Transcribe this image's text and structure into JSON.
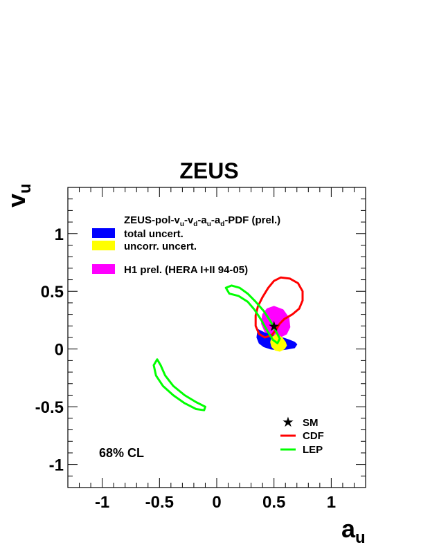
{
  "chart_data": {
    "type": "contour",
    "title": "ZEUS",
    "xlabel": {
      "main": "a",
      "sub": "u"
    },
    "ylabel": {
      "main": "v",
      "sub": "u"
    },
    "xlim": [
      -1.3,
      1.3
    ],
    "ylim": [
      -1.2,
      1.4
    ],
    "xticks": [
      {
        "value": -1,
        "label": "-1"
      },
      {
        "value": -0.5,
        "label": "-0.5"
      },
      {
        "value": 0,
        "label": "0"
      },
      {
        "value": 0.5,
        "label": "0.5"
      },
      {
        "value": 1,
        "label": "1"
      }
    ],
    "yticks": [
      {
        "value": -1,
        "label": "-1"
      },
      {
        "value": -0.5,
        "label": "-0.5"
      },
      {
        "value": 0,
        "label": "0"
      },
      {
        "value": 0.5,
        "label": "0.5"
      },
      {
        "value": 1,
        "label": "1"
      }
    ],
    "legend_top": {
      "heading": {
        "p1": "ZEUS-pol-v",
        "s1": "u",
        "p2": "-v",
        "s2": "d",
        "p3": "-a",
        "s3": "u",
        "p4": "-a",
        "s4": "d",
        "p5": "-PDF (prel.)"
      },
      "entries": [
        {
          "label": "total uncert.",
          "color": "#0000ff"
        },
        {
          "label": "uncorr. uncert.",
          "color": "#ffff00"
        },
        {
          "label": "H1 prel. (HERA I+II 94-05)",
          "color": "#ff00ff"
        }
      ]
    },
    "legend_bottom": [
      {
        "label": "SM",
        "symbol": "star",
        "color": "#000000"
      },
      {
        "label": "CDF",
        "symbol": "line",
        "color": "#ff0000"
      },
      {
        "label": "LEP",
        "symbol": "line",
        "color": "#00ff00"
      }
    ],
    "annotation": "68% CL",
    "series": [
      {
        "name": "H1 prel. (HERA I+II 94-05)",
        "kind": "filled",
        "color": "#ff00ff",
        "points": [
          [
            0.5,
            0.37
          ],
          [
            0.58,
            0.34
          ],
          [
            0.63,
            0.27
          ],
          [
            0.64,
            0.19
          ],
          [
            0.61,
            0.13
          ],
          [
            0.55,
            0.1
          ],
          [
            0.48,
            0.11
          ],
          [
            0.42,
            0.15
          ],
          [
            0.39,
            0.22
          ],
          [
            0.4,
            0.3
          ],
          [
            0.44,
            0.35
          ]
        ]
      },
      {
        "name": "total uncert.",
        "kind": "filled",
        "color": "#0000ff",
        "points": [
          [
            0.36,
            0.17
          ],
          [
            0.42,
            0.14
          ],
          [
            0.5,
            0.12
          ],
          [
            0.57,
            0.1
          ],
          [
            0.63,
            0.08
          ],
          [
            0.68,
            0.06
          ],
          [
            0.7,
            0.04
          ],
          [
            0.68,
            0.01
          ],
          [
            0.62,
            0.0
          ],
          [
            0.55,
            -0.01
          ],
          [
            0.47,
            0.0
          ],
          [
            0.41,
            0.02
          ],
          [
            0.37,
            0.05
          ],
          [
            0.35,
            0.1
          ]
        ]
      },
      {
        "name": "uncorr. uncert.",
        "kind": "filled",
        "color": "#ffff00",
        "points": [
          [
            0.52,
            0.13
          ],
          [
            0.57,
            0.1
          ],
          [
            0.6,
            0.06
          ],
          [
            0.61,
            0.03
          ],
          [
            0.59,
            0.0
          ],
          [
            0.55,
            -0.02
          ],
          [
            0.51,
            -0.01
          ],
          [
            0.48,
            0.02
          ],
          [
            0.47,
            0.06
          ],
          [
            0.48,
            0.1
          ]
        ]
      },
      {
        "name": "CDF",
        "kind": "contour",
        "color": "#ff0000",
        "width": 3,
        "points": [
          [
            0.56,
            0.62
          ],
          [
            0.64,
            0.61
          ],
          [
            0.71,
            0.57
          ],
          [
            0.75,
            0.5
          ],
          [
            0.75,
            0.42
          ],
          [
            0.72,
            0.35
          ],
          [
            0.66,
            0.3
          ],
          [
            0.59,
            0.26
          ],
          [
            0.55,
            0.22
          ],
          [
            0.52,
            0.17
          ],
          [
            0.48,
            0.12
          ],
          [
            0.42,
            0.1
          ],
          [
            0.37,
            0.13
          ],
          [
            0.34,
            0.2
          ],
          [
            0.34,
            0.29
          ],
          [
            0.36,
            0.37
          ],
          [
            0.4,
            0.45
          ],
          [
            0.45,
            0.53
          ],
          [
            0.5,
            0.59
          ]
        ]
      },
      {
        "name": "LEP",
        "kind": "contour",
        "color": "#00ff00",
        "width": 3,
        "points": [
          [
            0.08,
            0.53
          ],
          [
            0.13,
            0.55
          ],
          [
            0.2,
            0.53
          ],
          [
            0.27,
            0.48
          ],
          [
            0.34,
            0.41
          ],
          [
            0.41,
            0.33
          ],
          [
            0.47,
            0.24
          ],
          [
            0.52,
            0.15
          ],
          [
            0.55,
            0.09
          ],
          [
            0.53,
            0.05
          ],
          [
            0.49,
            0.08
          ],
          [
            0.44,
            0.16
          ],
          [
            0.39,
            0.25
          ],
          [
            0.33,
            0.34
          ],
          [
            0.27,
            0.41
          ],
          [
            0.19,
            0.46
          ],
          [
            0.11,
            0.48
          ]
        ]
      },
      {
        "name": "LEP",
        "kind": "contour",
        "color": "#00ff00",
        "width": 3,
        "points": [
          [
            -0.52,
            -0.09
          ],
          [
            -0.49,
            -0.14
          ],
          [
            -0.45,
            -0.23
          ],
          [
            -0.38,
            -0.32
          ],
          [
            -0.28,
            -0.4
          ],
          [
            -0.18,
            -0.46
          ],
          [
            -0.1,
            -0.5
          ],
          [
            -0.11,
            -0.53
          ],
          [
            -0.18,
            -0.52
          ],
          [
            -0.28,
            -0.47
          ],
          [
            -0.38,
            -0.4
          ],
          [
            -0.47,
            -0.32
          ],
          [
            -0.53,
            -0.23
          ],
          [
            -0.55,
            -0.14
          ]
        ]
      }
    ],
    "sm_point": {
      "x": 0.5,
      "y": 0.2,
      "label": "SM"
    },
    "grid": false
  }
}
